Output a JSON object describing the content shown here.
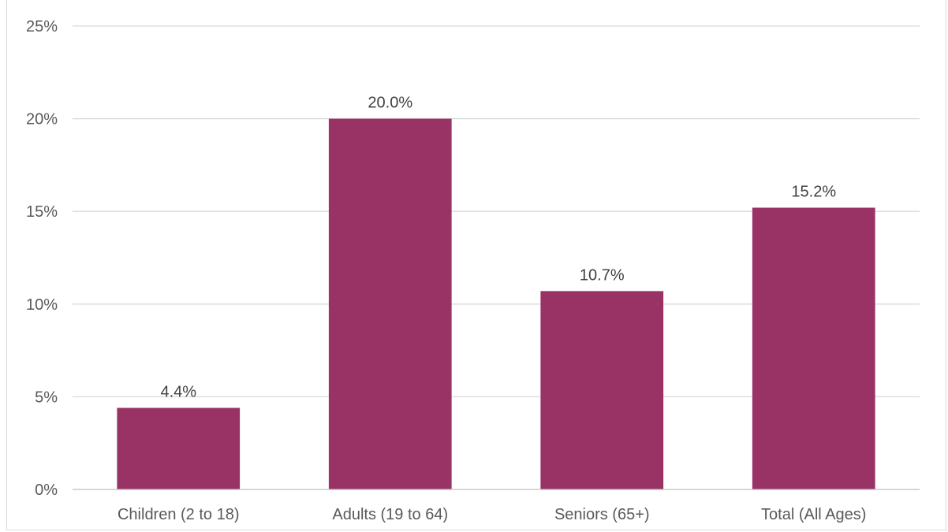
{
  "chart_data": {
    "type": "bar",
    "title": "",
    "xlabel": "",
    "ylabel": "",
    "categories": [
      "Children (2 to 18)",
      "Adults (19 to 64)",
      "Seniors (65+)",
      "Total (All Ages)"
    ],
    "values": [
      4.4,
      20.0,
      10.7,
      15.2
    ],
    "data_labels": [
      "4.4%",
      "20.0%",
      "10.7%",
      "15.2%"
    ],
    "ylim": [
      0,
      25
    ],
    "y_ticks": [
      0,
      5,
      10,
      15,
      20,
      25
    ],
    "y_tick_labels": [
      "0%",
      "5%",
      "10%",
      "15%",
      "20%",
      "25%"
    ],
    "grid": true,
    "legend": "none",
    "colors": {
      "bar": "#993366",
      "grid": "#d9d9d9",
      "axis": "#bfbfbf"
    }
  }
}
